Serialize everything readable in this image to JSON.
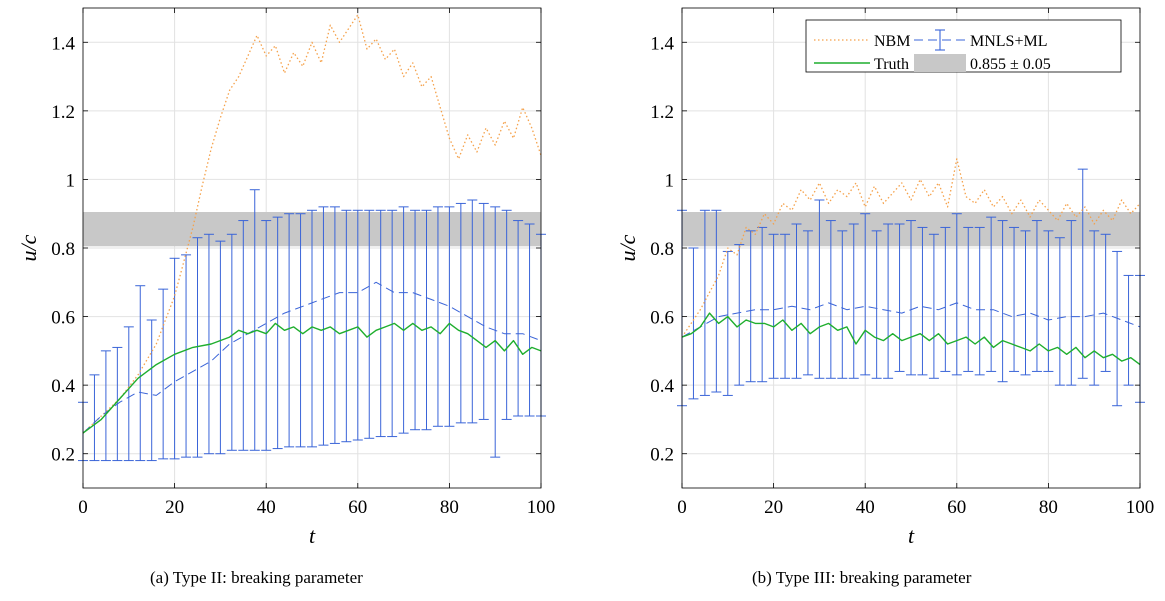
{
  "captions": [
    "(a) Type II: breaking parameter",
    "(b) Type III: breaking parameter"
  ],
  "colors": {
    "nbm": "#f5a14a",
    "mnls": "#3a64d8",
    "truth": "#1fae2e",
    "band": "#c8c8c8",
    "grid": "#e2e2e2"
  },
  "chart_data": [
    {
      "type": "line",
      "xlabel": "t",
      "ylabel": "u/c",
      "xlim": [
        0,
        100
      ],
      "ylim": [
        0.1,
        1.5
      ],
      "xticks": [
        0,
        20,
        40,
        60,
        80,
        100
      ],
      "yticks": [
        0.2,
        0.4,
        0.6,
        0.8,
        1,
        1.2,
        1.4
      ],
      "grid": true,
      "band": {
        "center": 0.855,
        "halfwidth": 0.05,
        "label": "0.855 ± 0.05"
      },
      "series": [
        {
          "name": "NBM",
          "style": "dotted",
          "x": [
            0,
            4,
            8,
            12,
            16,
            20,
            22,
            24,
            26,
            28,
            30,
            32,
            34,
            36,
            38,
            40,
            42,
            44,
            46,
            48,
            50,
            52,
            54,
            56,
            58,
            60,
            62,
            64,
            66,
            68,
            70,
            72,
            74,
            76,
            78,
            80,
            82,
            84,
            86,
            88,
            90,
            92,
            94,
            96,
            98,
            100
          ],
          "y": [
            0.26,
            0.31,
            0.36,
            0.43,
            0.52,
            0.66,
            0.76,
            0.86,
            0.98,
            1.09,
            1.18,
            1.26,
            1.3,
            1.36,
            1.42,
            1.36,
            1.39,
            1.31,
            1.37,
            1.33,
            1.4,
            1.34,
            1.45,
            1.4,
            1.44,
            1.48,
            1.38,
            1.41,
            1.35,
            1.38,
            1.3,
            1.34,
            1.27,
            1.3,
            1.21,
            1.12,
            1.06,
            1.13,
            1.08,
            1.15,
            1.1,
            1.17,
            1.12,
            1.21,
            1.15,
            1.07
          ]
        },
        {
          "name": "MNLS+ML",
          "style": "dashed",
          "x": [
            0,
            4,
            8,
            12,
            16,
            20,
            24,
            28,
            32,
            36,
            40,
            44,
            48,
            52,
            56,
            60,
            64,
            68,
            72,
            76,
            80,
            84,
            88,
            92,
            96,
            100
          ],
          "y": [
            0.26,
            0.31,
            0.35,
            0.38,
            0.37,
            0.41,
            0.44,
            0.47,
            0.52,
            0.55,
            0.58,
            0.61,
            0.63,
            0.65,
            0.67,
            0.67,
            0.7,
            0.67,
            0.67,
            0.65,
            0.63,
            0.6,
            0.57,
            0.55,
            0.55,
            0.53
          ],
          "errorbars": {
            "x": [
              0,
              2.5,
              5,
              7.5,
              10,
              12.5,
              15,
              17.5,
              20,
              22.5,
              25,
              27.5,
              30,
              32.5,
              35,
              37.5,
              40,
              42.5,
              45,
              47.5,
              50,
              52.5,
              55,
              57.5,
              60,
              62.5,
              65,
              67.5,
              70,
              72.5,
              75,
              77.5,
              80,
              82.5,
              85,
              87.5,
              90,
              92.5,
              95,
              97.5,
              100
            ],
            "upper": [
              0.35,
              0.43,
              0.5,
              0.51,
              0.57,
              0.69,
              0.59,
              0.68,
              0.77,
              0.78,
              0.83,
              0.84,
              0.82,
              0.84,
              0.88,
              0.97,
              0.88,
              0.89,
              0.9,
              0.9,
              0.91,
              0.92,
              0.92,
              0.91,
              0.91,
              0.91,
              0.91,
              0.91,
              0.92,
              0.91,
              0.91,
              0.92,
              0.92,
              0.93,
              0.94,
              0.93,
              0.92,
              0.91,
              0.88,
              0.87,
              0.84
            ],
            "lower": [
              0.18,
              0.18,
              0.18,
              0.18,
              0.18,
              0.18,
              0.18,
              0.185,
              0.185,
              0.19,
              0.19,
              0.2,
              0.2,
              0.21,
              0.21,
              0.21,
              0.21,
              0.215,
              0.22,
              0.22,
              0.22,
              0.225,
              0.23,
              0.235,
              0.24,
              0.245,
              0.25,
              0.25,
              0.26,
              0.27,
              0.27,
              0.28,
              0.28,
              0.29,
              0.29,
              0.3,
              0.19,
              0.3,
              0.31,
              0.31,
              0.31
            ]
          }
        },
        {
          "name": "Truth",
          "style": "solid",
          "x": [
            0,
            4,
            8,
            12,
            16,
            20,
            24,
            28,
            32,
            34,
            36,
            38,
            40,
            42,
            44,
            46,
            48,
            50,
            52,
            54,
            56,
            58,
            60,
            62,
            64,
            66,
            68,
            70,
            72,
            74,
            76,
            78,
            80,
            82,
            84,
            86,
            88,
            90,
            92,
            94,
            96,
            98,
            100
          ],
          "y": [
            0.26,
            0.3,
            0.36,
            0.42,
            0.46,
            0.49,
            0.51,
            0.52,
            0.54,
            0.56,
            0.55,
            0.56,
            0.55,
            0.58,
            0.56,
            0.57,
            0.55,
            0.57,
            0.56,
            0.57,
            0.55,
            0.56,
            0.57,
            0.54,
            0.56,
            0.57,
            0.58,
            0.56,
            0.58,
            0.56,
            0.57,
            0.55,
            0.58,
            0.56,
            0.55,
            0.53,
            0.51,
            0.53,
            0.5,
            0.53,
            0.49,
            0.51,
            0.5
          ]
        }
      ]
    },
    {
      "type": "line",
      "xlabel": "t",
      "ylabel": "u/c",
      "xlim": [
        0,
        100
      ],
      "ylim": [
        0.1,
        1.5
      ],
      "xticks": [
        0,
        20,
        40,
        60,
        80,
        100
      ],
      "yticks": [
        0.2,
        0.4,
        0.6,
        0.8,
        1,
        1.2,
        1.4
      ],
      "grid": true,
      "legend": "top-right",
      "band": {
        "center": 0.855,
        "halfwidth": 0.05,
        "label": "0.855 ± 0.05"
      },
      "series": [
        {
          "name": "NBM",
          "style": "dotted",
          "x": [
            0,
            4,
            8,
            10,
            12,
            14,
            16,
            18,
            20,
            22,
            24,
            26,
            28,
            30,
            32,
            34,
            36,
            38,
            40,
            42,
            44,
            46,
            48,
            50,
            52,
            54,
            56,
            58,
            60,
            62,
            64,
            66,
            68,
            70,
            72,
            74,
            76,
            78,
            80,
            82,
            84,
            86,
            88,
            90,
            92,
            94,
            96,
            98,
            100
          ],
          "y": [
            0.54,
            0.62,
            0.72,
            0.8,
            0.78,
            0.86,
            0.84,
            0.9,
            0.87,
            0.93,
            0.91,
            0.97,
            0.94,
            0.99,
            0.93,
            0.97,
            0.95,
            0.99,
            0.92,
            0.98,
            0.93,
            0.96,
            0.99,
            0.94,
            1.0,
            0.95,
            0.99,
            0.92,
            1.06,
            0.95,
            0.93,
            0.97,
            0.92,
            0.95,
            0.9,
            0.94,
            0.89,
            0.94,
            0.91,
            0.88,
            0.93,
            0.89,
            0.92,
            0.87,
            0.91,
            0.88,
            0.94,
            0.9,
            0.93
          ]
        },
        {
          "name": "MNLS+ML",
          "style": "dashed",
          "x": [
            0,
            4,
            8,
            12,
            16,
            20,
            24,
            28,
            32,
            36,
            40,
            44,
            48,
            52,
            56,
            60,
            64,
            68,
            72,
            76,
            80,
            84,
            88,
            92,
            96,
            100
          ],
          "y": [
            0.54,
            0.57,
            0.6,
            0.61,
            0.62,
            0.62,
            0.63,
            0.62,
            0.64,
            0.62,
            0.63,
            0.62,
            0.61,
            0.63,
            0.62,
            0.64,
            0.62,
            0.62,
            0.6,
            0.61,
            0.59,
            0.6,
            0.6,
            0.61,
            0.59,
            0.57
          ],
          "errorbars": {
            "x": [
              0,
              2.5,
              5,
              7.5,
              10,
              12.5,
              15,
              17.5,
              20,
              22.5,
              25,
              27.5,
              30,
              32.5,
              35,
              37.5,
              40,
              42.5,
              45,
              47.5,
              50,
              52.5,
              55,
              57.5,
              60,
              62.5,
              65,
              67.5,
              70,
              72.5,
              75,
              77.5,
              80,
              82.5,
              85,
              87.5,
              90,
              92.5,
              95,
              97.5,
              100
            ],
            "upper": [
              0.91,
              0.8,
              0.91,
              0.91,
              0.79,
              0.81,
              0.85,
              0.86,
              0.84,
              0.84,
              0.87,
              0.85,
              0.94,
              0.88,
              0.85,
              0.87,
              0.9,
              0.85,
              0.87,
              0.87,
              0.88,
              0.86,
              0.84,
              0.86,
              0.9,
              0.86,
              0.86,
              0.89,
              0.88,
              0.86,
              0.85,
              0.88,
              0.85,
              0.83,
              0.88,
              1.03,
              0.85,
              0.84,
              0.79,
              0.72,
              0.72
            ],
            "lower": [
              0.34,
              0.36,
              0.37,
              0.38,
              0.37,
              0.4,
              0.41,
              0.41,
              0.42,
              0.42,
              0.42,
              0.43,
              0.42,
              0.42,
              0.42,
              0.42,
              0.43,
              0.42,
              0.42,
              0.44,
              0.43,
              0.43,
              0.42,
              0.44,
              0.43,
              0.44,
              0.43,
              0.44,
              0.41,
              0.44,
              0.43,
              0.44,
              0.44,
              0.4,
              0.4,
              0.42,
              0.4,
              0.44,
              0.34,
              0.4,
              0.35
            ]
          }
        },
        {
          "name": "Truth",
          "style": "solid",
          "x": [
            0,
            2,
            4,
            6,
            8,
            10,
            12,
            14,
            16,
            18,
            20,
            22,
            24,
            26,
            28,
            30,
            32,
            34,
            36,
            38,
            40,
            42,
            44,
            46,
            48,
            50,
            52,
            54,
            56,
            58,
            60,
            62,
            64,
            66,
            68,
            70,
            72,
            74,
            76,
            78,
            80,
            82,
            84,
            86,
            88,
            90,
            92,
            94,
            96,
            98,
            100
          ],
          "y": [
            0.54,
            0.55,
            0.57,
            0.61,
            0.58,
            0.6,
            0.57,
            0.59,
            0.58,
            0.58,
            0.57,
            0.59,
            0.56,
            0.58,
            0.55,
            0.57,
            0.58,
            0.56,
            0.57,
            0.52,
            0.56,
            0.54,
            0.53,
            0.55,
            0.53,
            0.54,
            0.55,
            0.53,
            0.55,
            0.52,
            0.53,
            0.54,
            0.52,
            0.54,
            0.51,
            0.53,
            0.52,
            0.51,
            0.5,
            0.52,
            0.5,
            0.51,
            0.49,
            0.51,
            0.48,
            0.5,
            0.48,
            0.49,
            0.47,
            0.48,
            0.46
          ]
        }
      ]
    }
  ],
  "legend": {
    "entries": [
      "NBM",
      "MNLS+ML",
      "Truth",
      "0.855 ± 0.05"
    ]
  }
}
